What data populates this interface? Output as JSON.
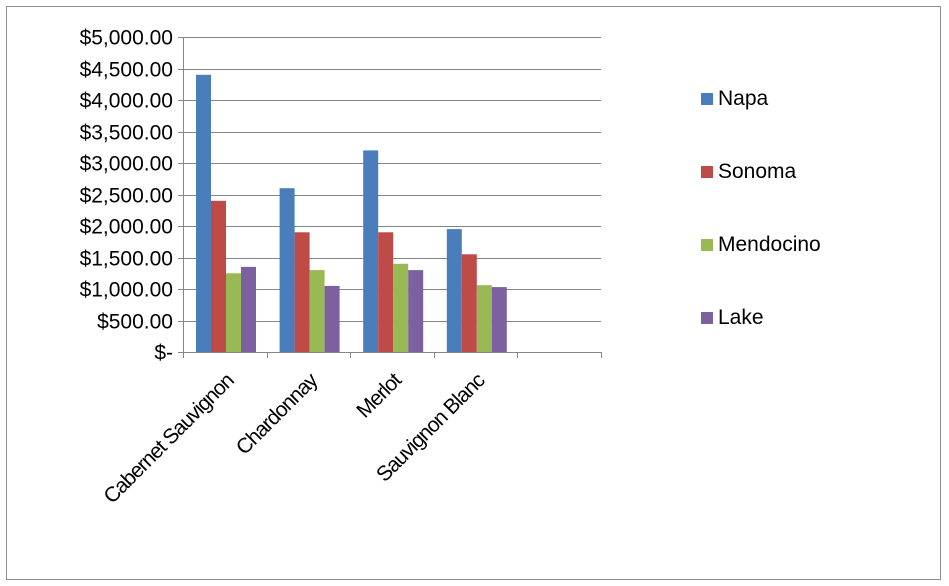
{
  "chart_data": {
    "type": "bar",
    "title": "",
    "xlabel": "",
    "ylabel": "",
    "categories": [
      "Cabernet Sauvignon",
      "Chardonnay",
      "Merlot",
      "Sauvignon Blanc",
      ""
    ],
    "series": [
      {
        "name": "Napa",
        "color": "#4a7ebb",
        "values": [
          4400,
          2600,
          3200,
          1950,
          null
        ]
      },
      {
        "name": "Sonoma",
        "color": "#be4b48",
        "values": [
          2400,
          1900,
          1900,
          1550,
          null
        ]
      },
      {
        "name": "Mendocino",
        "color": "#98b954",
        "values": [
          1250,
          1300,
          1400,
          1060,
          null
        ]
      },
      {
        "name": "Lake",
        "color": "#7d60a0",
        "values": [
          1350,
          1050,
          1300,
          1030,
          null
        ]
      }
    ],
    "ylim": [
      0,
      5000
    ],
    "yticks": [
      0,
      500,
      1000,
      1500,
      2000,
      2500,
      3000,
      3500,
      4000,
      4500,
      5000
    ],
    "ytick_labels": [
      "$-",
      "$500.00",
      "$1,000.00",
      "$1,500.00",
      "$2,000.00",
      "$2,500.00",
      "$3,000.00",
      "$3,500.00",
      "$4,000.00",
      "$4,500.00",
      "$5,000.00"
    ],
    "grid": true,
    "legend_position": "right"
  }
}
